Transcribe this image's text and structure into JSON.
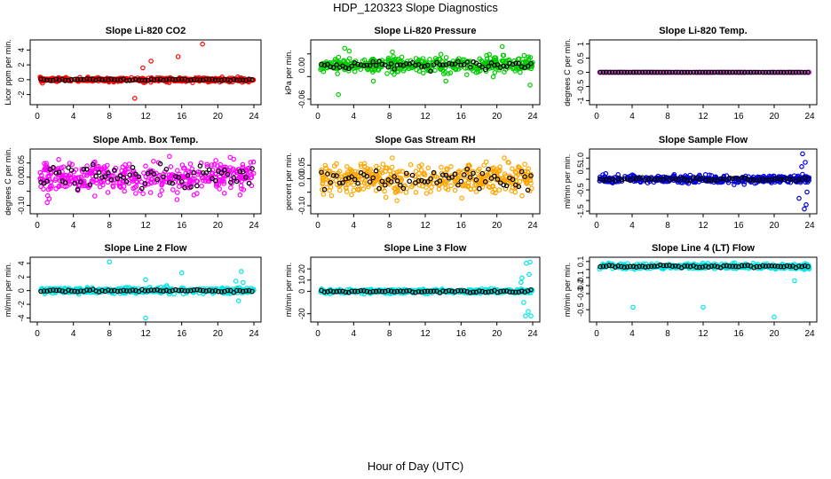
{
  "figure": {
    "title": "HDP_120323  Slope Diagnostics",
    "xlabel": "Hour of Day (UTC)"
  },
  "chart_data": [
    {
      "type": "scatter",
      "title": "Slope Li-820 CO2",
      "ylabel": "Licor ppm per min.",
      "color": "#ff0000",
      "xlim": [
        0,
        24
      ],
      "ylim": [
        -3,
        5
      ],
      "xticks": [
        0,
        4,
        8,
        12,
        16,
        20,
        24
      ],
      "yticks": [
        -2,
        0,
        2,
        4
      ],
      "base": 0,
      "spread": 0.22,
      "black_spread": 0.1,
      "outliers": [
        [
          10.8,
          -2.5
        ],
        [
          11.8,
          -0.4
        ],
        [
          11.7,
          1.6
        ],
        [
          12.6,
          2.5
        ],
        [
          14.3,
          -0.3
        ],
        [
          15.6,
          3.1
        ],
        [
          17.2,
          -0.4
        ],
        [
          18.3,
          4.8
        ],
        [
          21.3,
          -0.3
        ]
      ]
    },
    {
      "type": "scatter",
      "title": "Slope Li-820 Pressure",
      "ylabel": "kPa per min.",
      "color": "#00cc00",
      "xlim": [
        0,
        24
      ],
      "ylim": [
        -0.065,
        0.04
      ],
      "xticks": [
        0,
        4,
        8,
        12,
        16,
        20,
        24
      ],
      "yticks": [
        -0.06,
        -0.02,
        0.02
      ],
      "ytick_labels": [
        "-0.06",
        "0.00"
      ],
      "ytick_label_values": [
        -0.06,
        0.0
      ],
      "base": 0.0,
      "spread": 0.012,
      "black_spread": 0.006,
      "outliers": [
        [
          2.3,
          -0.052
        ],
        [
          3.5,
          0.025
        ],
        [
          6.2,
          -0.028
        ],
        [
          14.3,
          -0.028
        ],
        [
          20.6,
          0.033
        ],
        [
          23.7,
          -0.035
        ],
        [
          3.0,
          0.03
        ]
      ]
    },
    {
      "type": "scatter",
      "title": "Slope Li-820 Temp.",
      "ylabel": "degrees C per min.",
      "color": "#cc44cc",
      "xlim": [
        0,
        24
      ],
      "ylim": [
        -1.05,
        1.05
      ],
      "xticks": [
        0,
        4,
        8,
        12,
        16,
        20,
        24
      ],
      "yticks": [
        -1.0,
        -0.5,
        0.0,
        0.5,
        1.0
      ],
      "base": 0,
      "spread": 0.005,
      "black_spread": 0.002,
      "outliers": []
    },
    {
      "type": "scatter",
      "title": "Slope Amb. Box Temp.",
      "ylabel": "degrees C per min.",
      "color": "#ff00ff",
      "xlim": [
        0,
        24
      ],
      "ylim": [
        -0.12,
        0.09
      ],
      "xticks": [
        0,
        4,
        8,
        12,
        16,
        20,
        24
      ],
      "yticks": [
        -0.1,
        -0.05,
        0.0,
        0.05
      ],
      "ytick_labels": [
        "-0.10",
        "0.00",
        "0.05"
      ],
      "ytick_label_values": [
        -0.1,
        0.0,
        0.05
      ],
      "base": 0,
      "spread": 0.045,
      "black_spread": 0.03,
      "outliers": []
    },
    {
      "type": "scatter",
      "title": "Slope Gas Stream RH",
      "ylabel": "percent per min.",
      "color": "#ffa500",
      "xlim": [
        0,
        24
      ],
      "ylim": [
        -0.12,
        0.1
      ],
      "xticks": [
        0,
        4,
        8,
        12,
        16,
        20,
        24
      ],
      "yticks": [
        -0.1,
        -0.05,
        0.0,
        0.05
      ],
      "ytick_labels": [
        "-0.10",
        "0.00",
        "0.05"
      ],
      "ytick_label_values": [
        -0.1,
        0.0,
        0.05
      ],
      "base": 0,
      "spread": 0.045,
      "black_spread": 0.035,
      "outliers": []
    },
    {
      "type": "scatter",
      "title": "Slope Sample Flow",
      "ylabel": "ml/min per min.",
      "color": "#0000dd",
      "xlim": [
        0,
        24
      ],
      "ylim": [
        -1.5,
        1.3
      ],
      "xticks": [
        0,
        4,
        8,
        12,
        16,
        20,
        24
      ],
      "yticks": [
        -1.5,
        -1.0,
        -0.5,
        0.0,
        0.5,
        1.0
      ],
      "ytick_labels": [
        "-1.5",
        "-0.5",
        "0.5",
        "1.0"
      ],
      "ytick_label_values": [
        -1.5,
        -0.5,
        0.5,
        1.0
      ],
      "base": 0,
      "spread": 0.15,
      "black_spread": 0.06,
      "outliers": [
        [
          23.2,
          1.2
        ],
        [
          23.4,
          -1.4
        ],
        [
          23.6,
          -1.2
        ],
        [
          23.1,
          0.6
        ],
        [
          22.8,
          -0.9
        ],
        [
          23.5,
          0.8
        ],
        [
          23.7,
          -0.6
        ]
      ]
    },
    {
      "type": "scatter",
      "title": "Slope Line 2 Flow",
      "ylabel": "ml/min per min.",
      "color": "#00e5e5",
      "xlim": [
        0,
        24
      ],
      "ylim": [
        -4.2,
        4.5
      ],
      "xticks": [
        0,
        4,
        8,
        12,
        16,
        20,
        24
      ],
      "yticks": [
        -4,
        -2,
        0,
        2,
        4
      ],
      "base": 0,
      "spread": 0.35,
      "black_spread": 0.15,
      "outliers": [
        [
          8.0,
          4.2
        ],
        [
          12.0,
          -4.0
        ],
        [
          12.0,
          1.6
        ],
        [
          16.0,
          2.6
        ],
        [
          22.3,
          -1.5
        ],
        [
          22.6,
          2.8
        ],
        [
          22.0,
          1.4
        ],
        [
          22.8,
          1.2
        ]
      ]
    },
    {
      "type": "scatter",
      "title": "Slope Line 3 Flow",
      "ylabel": "ml/min per min.",
      "color": "#00e5e5",
      "xlim": [
        0,
        24
      ],
      "ylim": [
        -25,
        28
      ],
      "xticks": [
        0,
        4,
        8,
        12,
        16,
        20,
        24
      ],
      "yticks": [
        -20,
        0,
        10,
        20
      ],
      "base": 0,
      "spread": 1.5,
      "black_spread": 0.8,
      "outliers": [
        [
          23.3,
          25.0
        ],
        [
          23.7,
          26.0
        ],
        [
          23.2,
          -22.0
        ],
        [
          23.5,
          -18.0
        ],
        [
          22.8,
          12.0
        ],
        [
          23.0,
          -10.0
        ],
        [
          23.8,
          -22.0
        ],
        [
          22.7,
          8.0
        ],
        [
          23.6,
          15.0
        ]
      ]
    },
    {
      "type": "scatter",
      "title": "Slope Line 4 (LT) Flow",
      "ylabel": "ml/min per min.",
      "color": "#00e5e5",
      "xlim": [
        0,
        24
      ],
      "ylim": [
        -0.62,
        0.12
      ],
      "xticks": [
        0,
        4,
        8,
        12,
        16,
        20,
        24
      ],
      "yticks": [
        -0.5,
        -0.3,
        -0.2,
        -0.1,
        0.0,
        0.1
      ],
      "ytick_labels": [
        "-0.5",
        "-0.3",
        "-0.2",
        "-0.1",
        "0.1"
      ],
      "ytick_label_values": [
        -0.5,
        -0.3,
        -0.2,
        -0.1,
        0.1
      ],
      "base": 0.04,
      "spread": 0.025,
      "black_spread": 0.012,
      "outliers": [
        [
          4.1,
          -0.47
        ],
        [
          12.0,
          -0.47
        ],
        [
          20.0,
          -0.59
        ],
        [
          22.3,
          -0.14
        ]
      ]
    }
  ]
}
